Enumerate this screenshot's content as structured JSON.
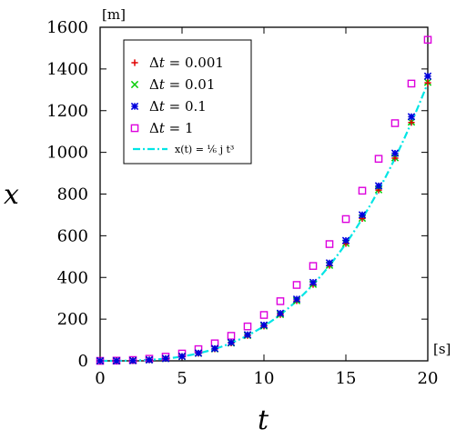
{
  "chart_data": {
    "type": "scatter",
    "xlabel": "t",
    "ylabel": "x",
    "x_unit": "[s]",
    "y_unit": "[m]",
    "xlim": [
      0,
      20
    ],
    "ylim": [
      0,
      1600
    ],
    "xticks": [
      0,
      5,
      10,
      15,
      20
    ],
    "yticks": [
      0,
      200,
      400,
      600,
      800,
      1000,
      1200,
      1400,
      1600
    ],
    "grid": false,
    "legend_position": "top-left",
    "series": [
      {
        "name": "Δt = 0.001",
        "marker": "plus",
        "color": "#e00000",
        "x": [
          0,
          1,
          2,
          3,
          4,
          5,
          6,
          7,
          8,
          9,
          10,
          11,
          12,
          13,
          14,
          15,
          16,
          17,
          18,
          19,
          20
        ],
        "y": [
          0,
          0.17,
          1.33,
          4.5,
          10.7,
          20.8,
          36,
          57.2,
          85.3,
          121.5,
          166.7,
          221.9,
          288,
          366.2,
          457.4,
          562.6,
          682.7,
          818.9,
          972,
          1143.3,
          1333.6
        ]
      },
      {
        "name": "Δt = 0.01",
        "marker": "cross",
        "color": "#00cc00",
        "x": [
          0,
          1,
          2,
          3,
          4,
          5,
          6,
          7,
          8,
          9,
          10,
          11,
          12,
          13,
          14,
          15,
          16,
          17,
          18,
          19,
          20
        ],
        "y": [
          0,
          0.17,
          1.34,
          4.52,
          10.7,
          20.9,
          36.2,
          57.4,
          85.6,
          121.9,
          167.2,
          222.5,
          288.7,
          367.2,
          458.5,
          563.9,
          684.3,
          820.6,
          974.2,
          1145.7,
          1336.3
        ]
      },
      {
        "name": "Δt = 0.1",
        "marker": "star",
        "color": "#0000dd",
        "x": [
          0,
          1,
          2,
          3,
          4,
          5,
          6,
          7,
          8,
          9,
          10,
          11,
          12,
          13,
          14,
          15,
          16,
          17,
          18,
          19,
          20
        ],
        "y": [
          0,
          0.19,
          1.41,
          4.7,
          11.1,
          21.6,
          37.3,
          59.1,
          88.1,
          125.2,
          171.5,
          228.1,
          295.9,
          376.1,
          469.4,
          577.2,
          700.2,
          839.4,
          996,
          1171,
          1365.3
        ]
      },
      {
        "name": "Δt = 1",
        "marker": "square",
        "color": "#dd00dd",
        "x": [
          0,
          1,
          2,
          3,
          4,
          5,
          6,
          7,
          8,
          9,
          10,
          11,
          12,
          13,
          14,
          15,
          16,
          17,
          18,
          19,
          20
        ],
        "y": [
          0,
          1,
          4,
          10,
          20,
          35,
          56,
          84,
          120,
          165,
          220,
          286,
          364,
          455,
          560,
          680,
          816,
          969,
          1140,
          1330,
          1540
        ]
      },
      {
        "name": "x(t) = (1/6) j t³",
        "marker": "dashdot-line",
        "color": "#00e5e5",
        "formula": "x(t) = 1/6 j t^3",
        "j": 1
      }
    ]
  },
  "legend": [
    {
      "prefix": "Δ",
      "var": "t",
      "rest": " = 0.001"
    },
    {
      "prefix": "Δ",
      "var": "t",
      "rest": " = 0.01"
    },
    {
      "prefix": "Δ",
      "var": "t",
      "rest": " = 0.1"
    },
    {
      "prefix": "Δ",
      "var": "t",
      "rest": " = 1"
    },
    {
      "formula": "x(t) = ⅙ j t³"
    }
  ]
}
